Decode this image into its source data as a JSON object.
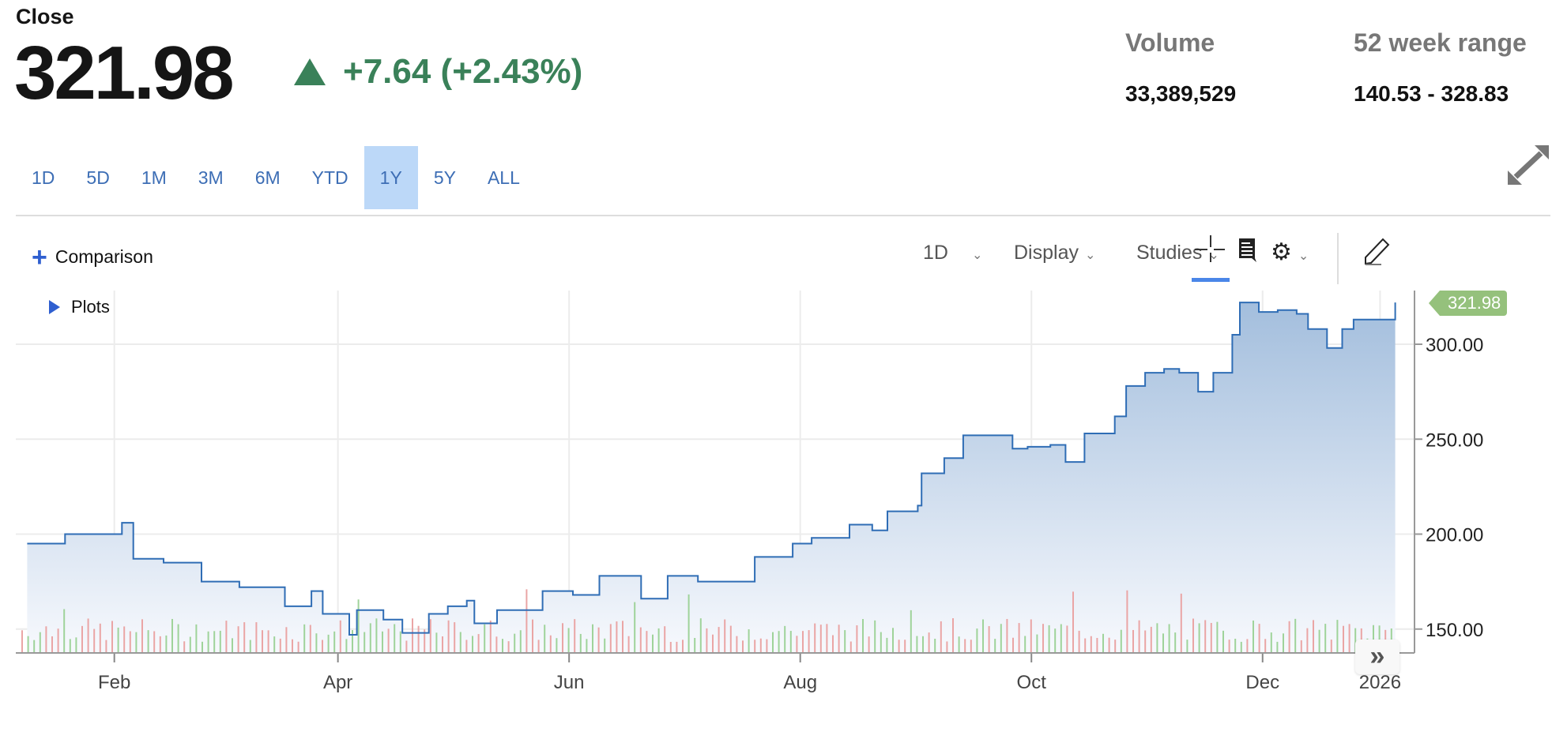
{
  "header": {
    "close_label": "Close",
    "price": "321.98",
    "change": "+7.64 (+2.43%)",
    "change_color": "#3a8159",
    "volume_label": "Volume",
    "volume_value": "33,389,529",
    "range_label": "52 week range",
    "range_value": "140.53 - 328.83"
  },
  "ranges": [
    "1D",
    "5D",
    "1M",
    "3M",
    "6M",
    "YTD",
    "1Y",
    "5Y",
    "ALL"
  ],
  "active_range": "1Y",
  "toolbar": {
    "comparison": "Comparison",
    "interval": "1D",
    "display": "Display",
    "studies": "Studies"
  },
  "plots_label": "Plots",
  "chart_data": {
    "type": "area",
    "title": "Close",
    "x_unit": "day of 2025",
    "x": [
      8,
      18,
      28,
      33,
      36,
      44,
      54,
      64,
      76,
      83,
      86,
      93,
      95,
      102,
      107,
      114,
      119,
      124,
      126,
      132,
      144,
      152,
      159,
      170,
      177,
      185,
      200,
      210,
      215,
      225,
      231,
      235,
      243,
      244,
      250,
      255,
      263,
      268,
      272,
      278,
      282,
      287,
      295,
      298,
      303,
      308,
      312,
      317,
      321,
      326,
      328,
      333,
      338,
      343,
      346,
      351,
      355,
      358,
      366,
      369
    ],
    "y": [
      195,
      200,
      200,
      206,
      187,
      185,
      175,
      172,
      162,
      170,
      158,
      147,
      160,
      155,
      148,
      158,
      162,
      165,
      153,
      160,
      170,
      168,
      178,
      166,
      178,
      175,
      188,
      195,
      198,
      205,
      202,
      212,
      215,
      232,
      240,
      252,
      252,
      245,
      246,
      247,
      238,
      253,
      262,
      278,
      285,
      287,
      285,
      275,
      285,
      305,
      322,
      317,
      318,
      316,
      308,
      298,
      308,
      313,
      313,
      321.98
    ],
    "last_value_label": "321.98",
    "yticks": [
      "150.00",
      "200.00",
      "250.00",
      "300.00"
    ],
    "ytick_values": [
      150,
      200,
      250,
      300
    ],
    "ylim": [
      137,
      330
    ],
    "xticks": [
      {
        "label": "Feb",
        "day": 31
      },
      {
        "label": "Apr",
        "day": 90
      },
      {
        "label": "Jun",
        "day": 151
      },
      {
        "label": "Aug",
        "day": 212
      },
      {
        "label": "Oct",
        "day": 273
      },
      {
        "label": "Dec",
        "day": 334
      },
      {
        "label": "2026",
        "day": 365
      }
    ],
    "xlim": [
      5,
      372
    ],
    "line_color": "#2f6db5",
    "up_color": "#9fd39a",
    "down_color": "#eaa5a5"
  }
}
